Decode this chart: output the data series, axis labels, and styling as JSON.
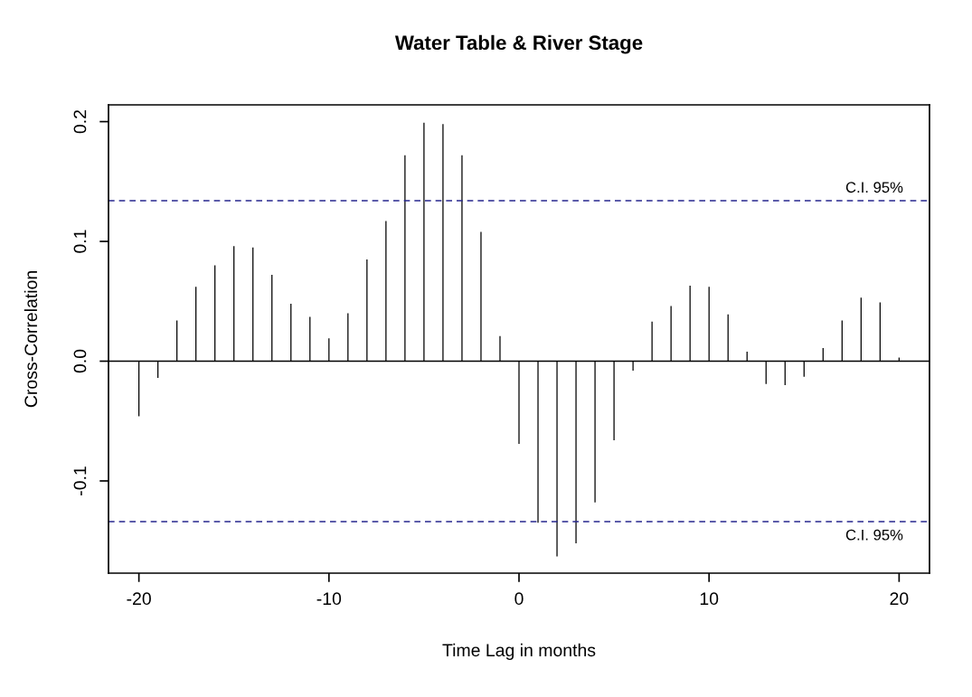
{
  "chart_data": {
    "type": "bar",
    "title": "Water Table & River Stage",
    "xlabel": "Time Lag in months",
    "ylabel": "Cross-Correlation",
    "x": [
      -20,
      -19,
      -18,
      -17,
      -16,
      -15,
      -14,
      -13,
      -12,
      -11,
      -10,
      -9,
      -8,
      -7,
      -6,
      -5,
      -4,
      -3,
      -2,
      -1,
      0,
      1,
      2,
      3,
      4,
      5,
      6,
      7,
      8,
      9,
      10,
      11,
      12,
      13,
      14,
      15,
      16,
      17,
      18,
      19,
      20
    ],
    "series": [
      {
        "color": "#000000",
        "values": [
          -0.046,
          -0.014,
          0.034,
          0.062,
          0.08,
          0.096,
          0.095,
          0.072,
          0.048,
          0.037,
          0.019,
          0.04,
          0.085,
          0.117,
          0.172,
          0.199,
          0.198,
          0.172,
          0.108,
          0.021,
          -0.069,
          -0.135,
          -0.163,
          -0.152,
          -0.118,
          -0.066,
          -0.008,
          0.033,
          0.046,
          0.063,
          0.062,
          0.039,
          0.008,
          -0.019,
          -0.02,
          -0.013,
          0.011,
          0.034,
          0.053,
          0.049,
          0.003
        ]
      }
    ],
    "xlim": [
      -21.6,
      21.6
    ],
    "xticks": [
      -20,
      -10,
      0,
      10,
      20
    ],
    "ylim": [
      -0.177,
      0.214
    ],
    "yticks": [
      -0.1,
      {
        "value": 0,
        "label": "0.0"
      },
      0.1,
      0.2
    ],
    "ref_lines": [
      {
        "axis": "y",
        "value": 0,
        "color": "#000000",
        "line_style": "solid"
      },
      {
        "axis": "y",
        "value": 0.134,
        "label": "C.I. 95%",
        "color": "#27278f",
        "line_style": "dashed"
      },
      {
        "axis": "y",
        "value": -0.134,
        "label": "C.I. 95%",
        "color": "#27278f",
        "line_style": "dashed"
      }
    ],
    "grid": false,
    "legend": false
  }
}
